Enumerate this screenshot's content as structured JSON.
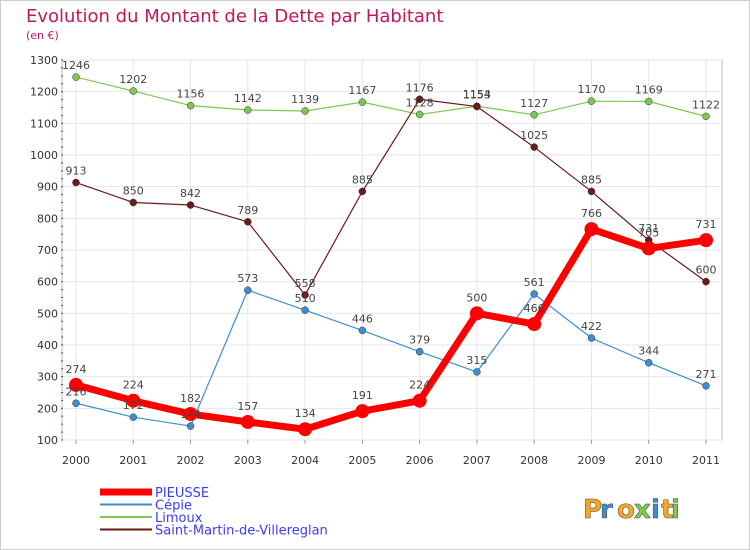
{
  "chart_data": {
    "type": "line",
    "title": "Evolution du Montant de la Dette par Habitant",
    "subtitle": "(en €)",
    "xlabel": "",
    "ylabel": "",
    "x": [
      "2000",
      "2001",
      "2002",
      "2003",
      "2004",
      "2005",
      "2006",
      "2007",
      "2008",
      "2009",
      "2010",
      "2011"
    ],
    "ylim": [
      100,
      1300
    ],
    "yticks": [
      100,
      200,
      300,
      400,
      500,
      600,
      700,
      800,
      900,
      1000,
      1100,
      1200,
      1300
    ],
    "grid": true,
    "legend_position": "bottom-left",
    "series": [
      {
        "name": "PIEUSSE",
        "color": "#ff0000",
        "values": [
          274,
          224,
          182,
          157,
          134,
          191,
          224,
          500,
          466,
          766,
          705,
          731
        ]
      },
      {
        "name": "Cépie",
        "color": "#3b8fd0",
        "values": [
          216,
          172,
          144,
          573,
          510,
          446,
          379,
          315,
          561,
          422,
          344,
          271
        ]
      },
      {
        "name": "Limoux",
        "color": "#7ec850",
        "values": [
          1246,
          1202,
          1156,
          1142,
          1139,
          1167,
          1128,
          1154,
          1127,
          1170,
          1169,
          1122
        ]
      },
      {
        "name": "Saint-Martin-de-Villereglan",
        "color": "#6b1a1a",
        "values": [
          913,
          850,
          842,
          789,
          558,
          885,
          1176,
          1153,
          1025,
          885,
          731,
          600
        ]
      }
    ]
  },
  "branding": {
    "logo_text": "Proxiti"
  }
}
